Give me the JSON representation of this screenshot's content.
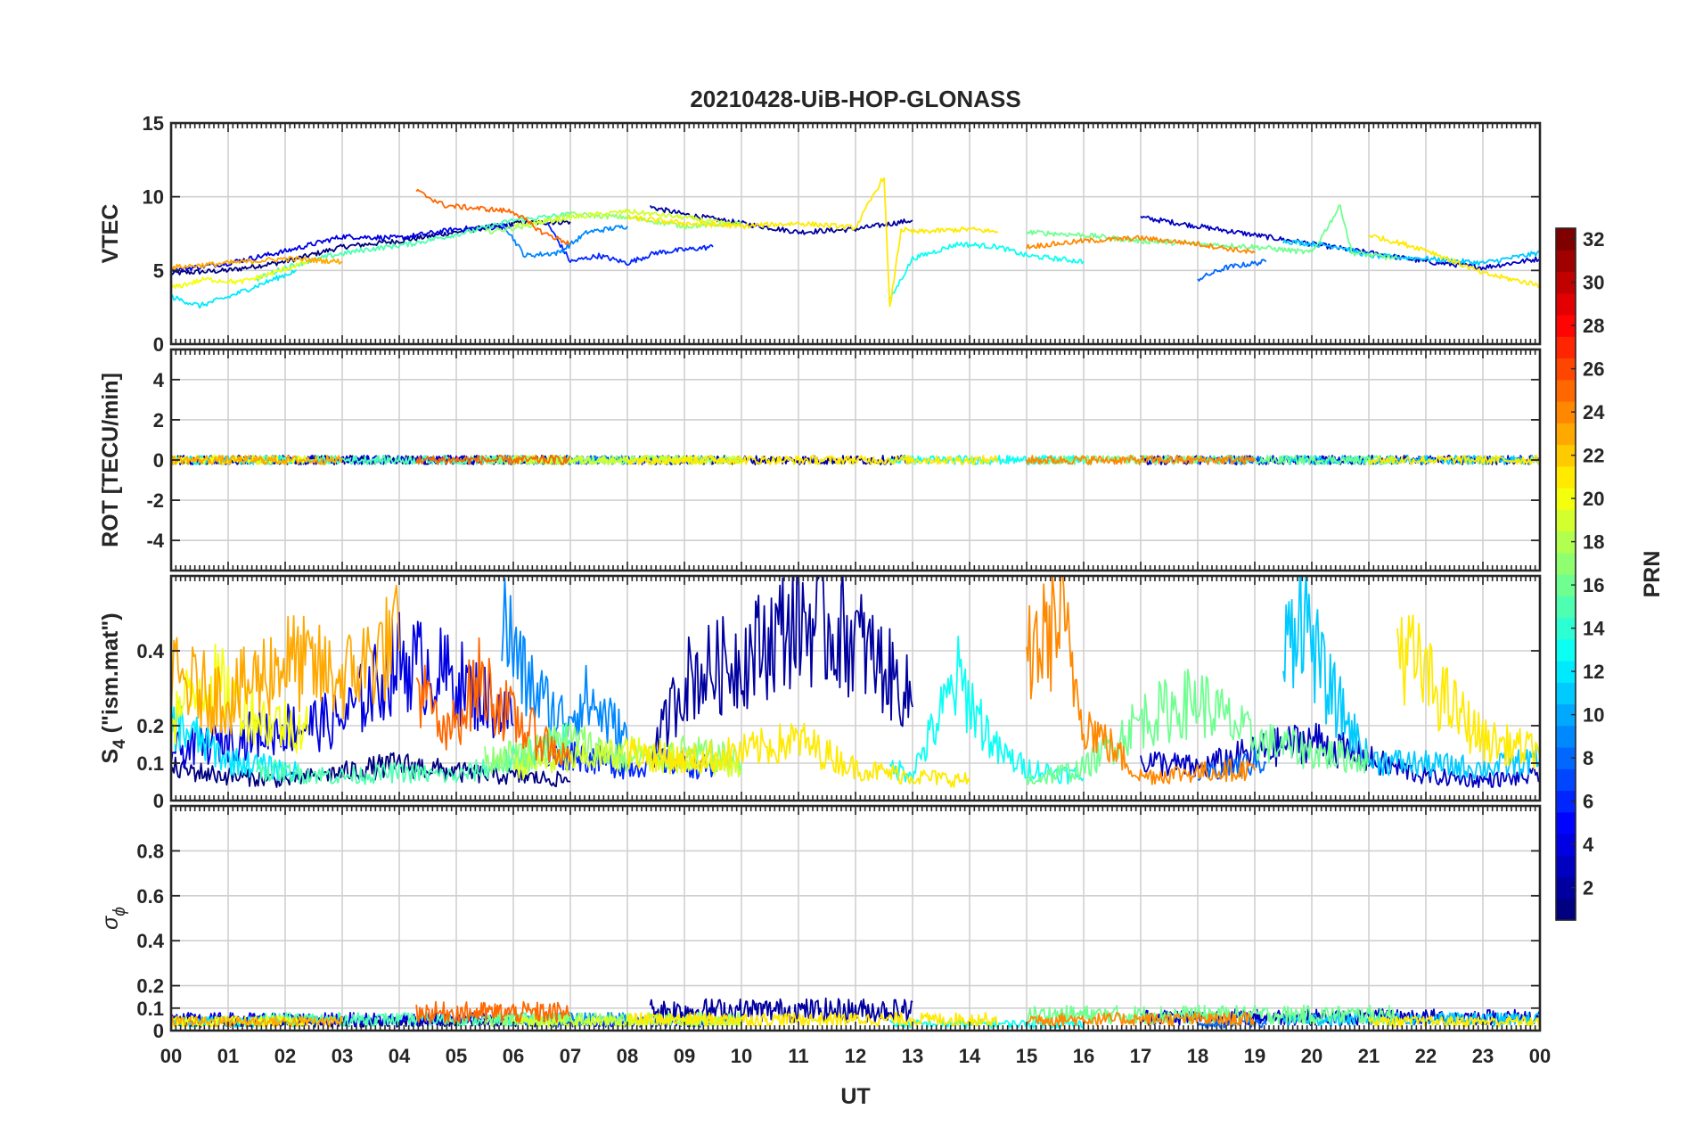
{
  "chart_data": {
    "type": "line",
    "title": "20210428-UiB-HOP-GLONASS",
    "xlabel": "UT",
    "x_ticks": [
      "00",
      "01",
      "02",
      "03",
      "04",
      "05",
      "06",
      "07",
      "08",
      "09",
      "10",
      "11",
      "12",
      "13",
      "14",
      "15",
      "16",
      "17",
      "18",
      "19",
      "20",
      "21",
      "22",
      "23",
      "00"
    ],
    "xlim_hours": [
      0,
      24
    ],
    "grid": true,
    "colormap": "jet",
    "colorbar": {
      "label": "PRN",
      "range": [
        1,
        32
      ],
      "ticks": [
        "32",
        "30",
        "28",
        "26",
        "24",
        "22",
        "20",
        "18",
        "16",
        "14",
        "12",
        "10",
        "8",
        "6",
        "4",
        "2"
      ],
      "placement": "right"
    },
    "panels": [
      {
        "name": "vtec",
        "ylabel": "VTEC",
        "ylim": [
          0,
          15
        ],
        "ytick_values": [
          0,
          5,
          10,
          15
        ],
        "ytick_labels": [
          "0",
          "5",
          "10",
          "15"
        ]
      },
      {
        "name": "rot",
        "ylabel": "ROT [TECU/min]",
        "ylim": [
          -5.5,
          5.5
        ],
        "ytick_values": [
          -4,
          -2,
          0,
          2,
          4
        ],
        "ytick_labels": [
          "-4",
          "-2",
          "0",
          "2",
          "4"
        ]
      },
      {
        "name": "s4",
        "ylabel_main": "S",
        "ylabel_sub": "4",
        "ylabel_rest": " (\"ism.mat\")",
        "ylim": [
          0,
          0.6
        ],
        "ytick_values": [
          0,
          0.1,
          0.2,
          0.4
        ],
        "ytick_labels": [
          "0",
          "0.1",
          "0.2",
          "0.4"
        ]
      },
      {
        "name": "sigma_phi",
        "ylabel_main": "σ",
        "ylabel_sub": "ϕ",
        "ylim": [
          0,
          1
        ],
        "ytick_values": [
          0,
          0.1,
          0.2,
          0.4,
          0.6,
          0.8
        ],
        "ytick_labels": [
          "0",
          "0.1",
          "0.2",
          "0.4",
          "0.6",
          "0.8"
        ]
      }
    ],
    "series": [
      {
        "prn": 1,
        "vtec": [
          [
            0,
            4.8
          ],
          [
            1,
            5.0
          ],
          [
            2,
            5.6
          ],
          [
            3,
            6.6
          ],
          [
            4,
            7.0
          ],
          [
            5,
            7.6
          ],
          [
            6,
            8.2
          ],
          [
            7,
            8.3
          ]
        ],
        "s4": [
          [
            0,
            0.08
          ],
          [
            1,
            0.06
          ],
          [
            2,
            0.05
          ],
          [
            3,
            0.07
          ],
          [
            4,
            0.09
          ],
          [
            5,
            0.07
          ],
          [
            6,
            0.06
          ],
          [
            7,
            0.05
          ]
        ],
        "sphi": 0.04
      },
      {
        "prn": 2,
        "vtec": [
          [
            8.4,
            9.3
          ],
          [
            9,
            8.8
          ],
          [
            10,
            8.2
          ],
          [
            11,
            7.6
          ],
          [
            12,
            7.8
          ],
          [
            13,
            8.4
          ]
        ],
        "s4": [
          [
            8.4,
            0.1
          ],
          [
            9,
            0.3
          ],
          [
            10,
            0.35
          ],
          [
            11,
            0.45
          ],
          [
            12,
            0.4
          ],
          [
            13,
            0.25
          ]
        ],
        "sphi": 0.09
      },
      {
        "prn": 3,
        "vtec": [
          [
            17,
            8.6
          ],
          [
            18,
            8.0
          ],
          [
            19,
            7.4
          ],
          [
            20,
            6.8
          ],
          [
            21,
            6.2
          ],
          [
            22,
            5.6
          ],
          [
            23,
            5.2
          ],
          [
            24,
            5.8
          ]
        ],
        "s4": [
          [
            17,
            0.1
          ],
          [
            18,
            0.08
          ],
          [
            19,
            0.12
          ],
          [
            20,
            0.15
          ],
          [
            21,
            0.1
          ],
          [
            22,
            0.06
          ],
          [
            23,
            0.05
          ],
          [
            24,
            0.06
          ]
        ],
        "sphi": 0.06
      },
      {
        "prn": 4,
        "vtec": [
          [
            0,
            5.0
          ],
          [
            1,
            5.5
          ],
          [
            2,
            6.3
          ],
          [
            3,
            7.3
          ],
          [
            4,
            7.2
          ],
          [
            5,
            7.8
          ],
          [
            6,
            8.0
          ]
        ],
        "s4": [
          [
            0,
            0.12
          ],
          [
            1,
            0.15
          ],
          [
            2,
            0.18
          ],
          [
            3,
            0.2
          ],
          [
            4,
            0.35
          ],
          [
            5,
            0.3
          ],
          [
            6,
            0.2
          ]
        ],
        "sphi": 0.05
      },
      {
        "prn": 6,
        "vtec": [
          [
            6.6,
            8.2
          ],
          [
            7,
            5.6
          ],
          [
            7.5,
            6.0
          ],
          [
            8,
            5.5
          ],
          [
            8.5,
            6.2
          ],
          [
            9.5,
            6.6
          ]
        ],
        "s4": [
          [
            6.6,
            0.1
          ],
          [
            7,
            0.12
          ],
          [
            7.5,
            0.1
          ],
          [
            8,
            0.08
          ],
          [
            8.5,
            0.1
          ],
          [
            9.5,
            0.08
          ]
        ],
        "sphi": 0.04
      },
      {
        "prn": 8,
        "vtec": [
          [
            18,
            4.4
          ],
          [
            18.5,
            5.2
          ],
          [
            19.2,
            5.6
          ]
        ],
        "s4": [
          [
            18,
            0.06
          ],
          [
            18.5,
            0.08
          ],
          [
            19.2,
            0.1
          ]
        ],
        "sphi": 0.03
      },
      {
        "prn": 9,
        "vtec": [
          [
            5.8,
            8.3
          ],
          [
            6.2,
            6.0
          ],
          [
            6.8,
            6.2
          ],
          [
            7.3,
            7.6
          ],
          [
            8,
            8.0
          ]
        ],
        "s4": [
          [
            5.8,
            0.45
          ],
          [
            6.2,
            0.3
          ],
          [
            6.8,
            0.2
          ],
          [
            7.3,
            0.25
          ],
          [
            8,
            0.15
          ]
        ],
        "sphi": 0.05
      },
      {
        "prn": 11,
        "vtec": [
          [
            19.5,
            7.0
          ],
          [
            20.5,
            6.6
          ],
          [
            21,
            6.0
          ],
          [
            22,
            5.8
          ],
          [
            23,
            5.5
          ],
          [
            24,
            6.2
          ]
        ],
        "s4": [
          [
            19.5,
            0.35
          ],
          [
            19.8,
            0.5
          ],
          [
            20.2,
            0.3
          ],
          [
            21,
            0.1
          ],
          [
            22,
            0.09
          ],
          [
            23,
            0.08
          ],
          [
            24,
            0.1
          ]
        ],
        "sphi": 0.05
      },
      {
        "prn": 12,
        "vtec": [
          [
            0,
            3.2
          ],
          [
            0.5,
            2.6
          ],
          [
            1,
            3.2
          ],
          [
            1.8,
            4.4
          ],
          [
            2.2,
            5.0
          ]
        ],
        "s4": [
          [
            0,
            0.2
          ],
          [
            0.5,
            0.15
          ],
          [
            1,
            0.1
          ],
          [
            1.8,
            0.08
          ],
          [
            2.2,
            0.07
          ]
        ],
        "sphi": 0.04
      },
      {
        "prn": 13,
        "vtec": [
          [
            12.6,
            3.0
          ],
          [
            13,
            5.8
          ],
          [
            13.8,
            6.8
          ],
          [
            14.5,
            6.6
          ],
          [
            15,
            6.0
          ],
          [
            16,
            5.6
          ]
        ],
        "s4": [
          [
            12.6,
            0.08
          ],
          [
            13,
            0.07
          ],
          [
            13.8,
            0.3
          ],
          [
            14.5,
            0.12
          ],
          [
            15,
            0.08
          ],
          [
            16,
            0.06
          ]
        ],
        "sphi": 0.03
      },
      {
        "prn": 15,
        "vtec": [
          [
            1.5,
            4.4
          ],
          [
            2,
            5.2
          ],
          [
            2.8,
            6.0
          ],
          [
            3.4,
            6.4
          ],
          [
            4.2,
            6.8
          ],
          [
            5.2,
            7.6
          ],
          [
            6,
            8.4
          ],
          [
            7,
            8.8
          ]
        ],
        "s4": [
          [
            1.5,
            0.08
          ],
          [
            2,
            0.07
          ],
          [
            3,
            0.06
          ],
          [
            4,
            0.07
          ],
          [
            5,
            0.06
          ],
          [
            6,
            0.1
          ],
          [
            7,
            0.15
          ]
        ],
        "sphi": 0.05
      },
      {
        "prn": 16,
        "vtec": [
          [
            15,
            7.6
          ],
          [
            16,
            7.4
          ],
          [
            17,
            7.0
          ],
          [
            18,
            6.8
          ],
          [
            19,
            6.6
          ],
          [
            20,
            6.2
          ],
          [
            20.5,
            9.4
          ],
          [
            20.7,
            6.2
          ],
          [
            21.5,
            5.8
          ]
        ],
        "s4": [
          [
            15,
            0.05
          ],
          [
            16,
            0.08
          ],
          [
            17,
            0.2
          ],
          [
            18,
            0.25
          ],
          [
            19,
            0.15
          ],
          [
            20,
            0.12
          ],
          [
            21,
            0.1
          ]
        ],
        "sphi": 0.07
      },
      {
        "prn": 17,
        "vtec": [
          [
            5.5,
            7.6
          ],
          [
            6.2,
            8.0
          ],
          [
            7,
            8.8
          ],
          [
            8,
            8.6
          ],
          [
            9,
            8.0
          ],
          [
            10,
            8.2
          ]
        ],
        "s4": [
          [
            5.5,
            0.1
          ],
          [
            6.2,
            0.12
          ],
          [
            7,
            0.15
          ],
          [
            8,
            0.1
          ],
          [
            9,
            0.12
          ],
          [
            10,
            0.1
          ]
        ],
        "sphi": 0.05
      },
      {
        "prn": 19,
        "vtec": [
          [
            6,
            8.0
          ],
          [
            7,
            8.6
          ],
          [
            8,
            9.0
          ],
          [
            9,
            8.6
          ],
          [
            10,
            8.0
          ]
        ],
        "s4": [
          [
            6,
            0.08
          ],
          [
            7,
            0.1
          ],
          [
            8,
            0.12
          ],
          [
            9,
            0.1
          ],
          [
            10,
            0.08
          ]
        ],
        "sphi": 0.04
      },
      {
        "prn": 20,
        "vtec": [
          [
            0,
            3.8
          ],
          [
            0.6,
            4.4
          ],
          [
            1.2,
            4.2
          ],
          [
            1.6,
            4.6
          ],
          [
            2.4,
            5.6
          ]
        ],
        "s4": [
          [
            0,
            0.2
          ],
          [
            0.6,
            0.3
          ],
          [
            1.2,
            0.25
          ],
          [
            1.6,
            0.2
          ],
          [
            2.4,
            0.18
          ]
        ],
        "sphi": 0.04
      },
      {
        "prn": 21,
        "vtec": [
          [
            8,
            8.6
          ],
          [
            9,
            8.2
          ],
          [
            10,
            8.0
          ],
          [
            11,
            8.2
          ],
          [
            12,
            7.9
          ],
          [
            12.5,
            11.4
          ],
          [
            12.6,
            2.4
          ],
          [
            12.8,
            7.8
          ],
          [
            13,
            7.6
          ],
          [
            14,
            7.8
          ],
          [
            14.5,
            7.6
          ]
        ],
        "s4": [
          [
            8,
            0.12
          ],
          [
            9,
            0.1
          ],
          [
            10,
            0.12
          ],
          [
            11,
            0.15
          ],
          [
            12,
            0.08
          ],
          [
            13,
            0.06
          ],
          [
            14,
            0.05
          ]
        ],
        "sphi": 0.05
      },
      {
        "prn": 21,
        "vtec": [
          [
            21,
            7.4
          ],
          [
            22,
            6.4
          ],
          [
            23,
            4.8
          ],
          [
            24,
            4.0
          ]
        ],
        "s4": [
          [
            21.5,
            0.4
          ],
          [
            22,
            0.3
          ],
          [
            23,
            0.15
          ],
          [
            24,
            0.12
          ]
        ],
        "sphi": 0.04
      },
      {
        "prn": 23,
        "vtec": [
          [
            0,
            5.2
          ],
          [
            1,
            5.5
          ],
          [
            2,
            5.8
          ],
          [
            3,
            5.6
          ]
        ],
        "s4": [
          [
            0,
            0.3
          ],
          [
            1,
            0.25
          ],
          [
            2,
            0.35
          ],
          [
            3,
            0.3
          ],
          [
            4,
            0.4
          ]
        ],
        "sphi": 0.04
      },
      {
        "prn": 24,
        "vtec": [
          [
            15,
            6.6
          ],
          [
            16,
            7.0
          ],
          [
            17,
            7.2
          ],
          [
            18,
            6.8
          ],
          [
            19,
            6.2
          ]
        ],
        "s4": [
          [
            15,
            0.35
          ],
          [
            15.6,
            0.45
          ],
          [
            16,
            0.2
          ],
          [
            17,
            0.06
          ],
          [
            18,
            0.07
          ],
          [
            19,
            0.08
          ]
        ],
        "sphi": 0.05
      },
      {
        "prn": 25,
        "vtec": [
          [
            4.3,
            10.4
          ],
          [
            4.8,
            9.4
          ],
          [
            5.4,
            9.2
          ],
          [
            6,
            9.0
          ],
          [
            6.5,
            7.6
          ],
          [
            7,
            6.8
          ]
        ],
        "s4": [
          [
            4.3,
            0.3
          ],
          [
            4.8,
            0.15
          ],
          [
            5.4,
            0.3
          ],
          [
            6,
            0.2
          ],
          [
            6.5,
            0.15
          ],
          [
            7,
            0.1
          ]
        ],
        "sphi": 0.08
      }
    ]
  }
}
